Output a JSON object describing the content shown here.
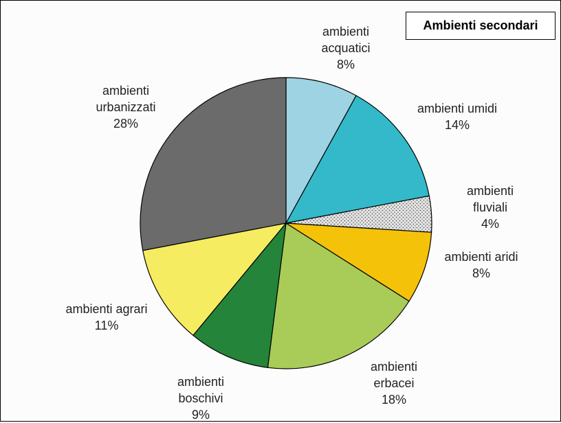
{
  "chart_data": {
    "type": "pie",
    "title": "Ambienti secondari",
    "categories": [
      "ambienti acquatici",
      "ambienti umidi",
      "ambienti fluviali",
      "ambienti aridi",
      "ambienti erbacei",
      "ambienti boschivi",
      "ambienti agrari",
      "ambienti urbanizzati"
    ],
    "values": [
      8,
      14,
      4,
      8,
      18,
      9,
      11,
      28
    ],
    "value_labels": [
      "8%",
      "14%",
      "4%",
      "8%",
      "18%",
      "9%",
      "11%",
      "28%"
    ],
    "colors": [
      "#9dd3e3",
      "#33b9c9",
      "#dcdcdc",
      "#f5c20a",
      "#a9cc58",
      "#23843a",
      "#f6ec62",
      "#6b6b6b"
    ]
  }
}
